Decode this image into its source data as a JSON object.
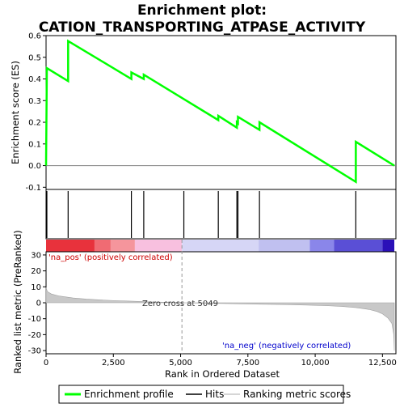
{
  "title_line1": "Enrichment plot:",
  "title_line2": "CATION_TRANSPORTING_ATPASE_ACTIVITY",
  "top_ylabel": "Enrichment score (ES)",
  "bottom_ylabel": "Ranked list metric (PreRanked)",
  "xlabel": "Rank in Ordered Dataset",
  "annotations": {
    "pos": "'na_pos' (positively correlated)",
    "neg": "'na_neg' (negatively correlated)",
    "zero": "Zero cross at 5049"
  },
  "legend": {
    "enrichment": "Enrichment profile",
    "hits": "Hits",
    "ranking": "Ranking metric scores"
  },
  "colors": {
    "enrichment_line": "#00ff00",
    "hits": "#000000",
    "metric_fill": "#c8c8c8",
    "pos_text": "#cc0000",
    "neg_text": "#0000cc"
  },
  "chart_data": {
    "type": "line",
    "title": "Enrichment plot: CATION_TRANSPORTING_ATPASE_ACTIVITY",
    "xlabel": "Rank in Ordered Dataset",
    "x_ticks": [
      "0",
      "2,500",
      "5,000",
      "7,500",
      "10,000",
      "12,500"
    ],
    "x_tick_values": [
      0,
      2500,
      5000,
      7500,
      10000,
      12500
    ],
    "xlim": [
      0,
      13000
    ],
    "es_ylim": [
      -0.11,
      0.6
    ],
    "es_ticks": [
      "-0.1",
      "0.0",
      "0.1",
      "0.2",
      "0.3",
      "0.4",
      "0.5",
      "0.6"
    ],
    "es_tick_values": [
      -0.1,
      0.0,
      0.1,
      0.2,
      0.3,
      0.4,
      0.5,
      0.6
    ],
    "enrichment_profile": {
      "x": [
        0,
        30,
        30,
        820,
        820,
        3170,
        3170,
        3630,
        3630,
        6400,
        6400,
        7090,
        7090,
        7130,
        7130,
        7930,
        7930,
        11510,
        11510,
        12940
      ],
      "y": [
        0.0,
        0.45,
        0.45,
        0.39,
        0.575,
        0.4,
        0.43,
        0.4,
        0.42,
        0.21,
        0.23,
        0.175,
        0.2,
        0.195,
        0.225,
        0.165,
        0.2,
        -0.075,
        0.11,
        0.0
      ]
    },
    "hits": [
      30,
      820,
      3170,
      3630,
      5120,
      6400,
      7090,
      7130,
      7930,
      11510
    ],
    "metric_ylim": [
      -32,
      32
    ],
    "metric_ticks": [
      "-30",
      "-20",
      "-10",
      "0",
      "10",
      "20",
      "30"
    ],
    "metric_tick_values": [
      -30,
      -20,
      -10,
      0,
      10,
      20,
      30
    ],
    "ranking_metric": {
      "x": [
        0,
        50,
        200,
        500,
        1000,
        1500,
        2000,
        2500,
        3000,
        3500,
        4000,
        4500,
        5049,
        6000,
        7000,
        8000,
        9000,
        10000,
        10500,
        11000,
        11500,
        12000,
        12300,
        12500,
        12700,
        12850,
        12920,
        12940
      ],
      "y": [
        9.5,
        7.0,
        5.5,
        4.2,
        3.0,
        2.3,
        1.8,
        1.4,
        1.1,
        0.8,
        0.5,
        0.3,
        0.0,
        -0.3,
        -0.6,
        -0.9,
        -1.2,
        -1.6,
        -1.9,
        -2.3,
        -3.0,
        -4.2,
        -5.5,
        -7.0,
        -9.5,
        -13.0,
        -20.0,
        -30.0
      ]
    },
    "zero_cross": 5049,
    "heat_bar": [
      {
        "x0": 0,
        "x1": 1800,
        "color": "#e8323c"
      },
      {
        "x0": 1800,
        "x1": 2400,
        "color": "#f06b73"
      },
      {
        "x0": 2400,
        "x1": 3300,
        "color": "#f5959c"
      },
      {
        "x0": 3300,
        "x1": 5049,
        "color": "#f8c0df"
      },
      {
        "x0": 5049,
        "x1": 7900,
        "color": "#d6d6f6"
      },
      {
        "x0": 7900,
        "x1": 9800,
        "color": "#c0c0f0"
      },
      {
        "x0": 9800,
        "x1": 10700,
        "color": "#8a86ea"
      },
      {
        "x0": 10700,
        "x1": 12500,
        "color": "#5a4fd6"
      },
      {
        "x0": 12500,
        "x1": 12940,
        "color": "#2a10b8"
      }
    ]
  }
}
